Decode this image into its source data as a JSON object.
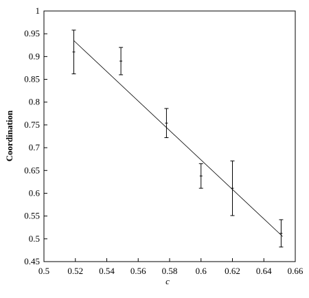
{
  "chart_data": {
    "type": "scatter",
    "x_label": "c",
    "y_label": "Coordination",
    "x": [
      0.519,
      0.549,
      0.578,
      0.6,
      0.62,
      0.651
    ],
    "values": [
      0.91,
      0.89,
      0.754,
      0.638,
      0.611,
      0.512
    ],
    "errors": [
      0.048,
      0.03,
      0.032,
      0.027,
      0.06,
      0.03
    ],
    "color": "#000000",
    "fit_line": {
      "x": [
        0.519,
        0.652
      ],
      "values": [
        0.935,
        0.505
      ],
      "color": "#000000"
    },
    "xlim": [
      0.5,
      0.66
    ],
    "xticks": [
      0.5,
      0.52,
      0.54,
      0.56,
      0.58,
      0.6,
      0.62,
      0.64,
      0.66
    ],
    "ylim": [
      0.45,
      1
    ],
    "yticks": [
      0.45,
      0.5,
      0.55,
      0.6,
      0.65,
      0.7,
      0.75,
      0.8,
      0.85,
      0.9,
      0.95,
      1
    ]
  }
}
